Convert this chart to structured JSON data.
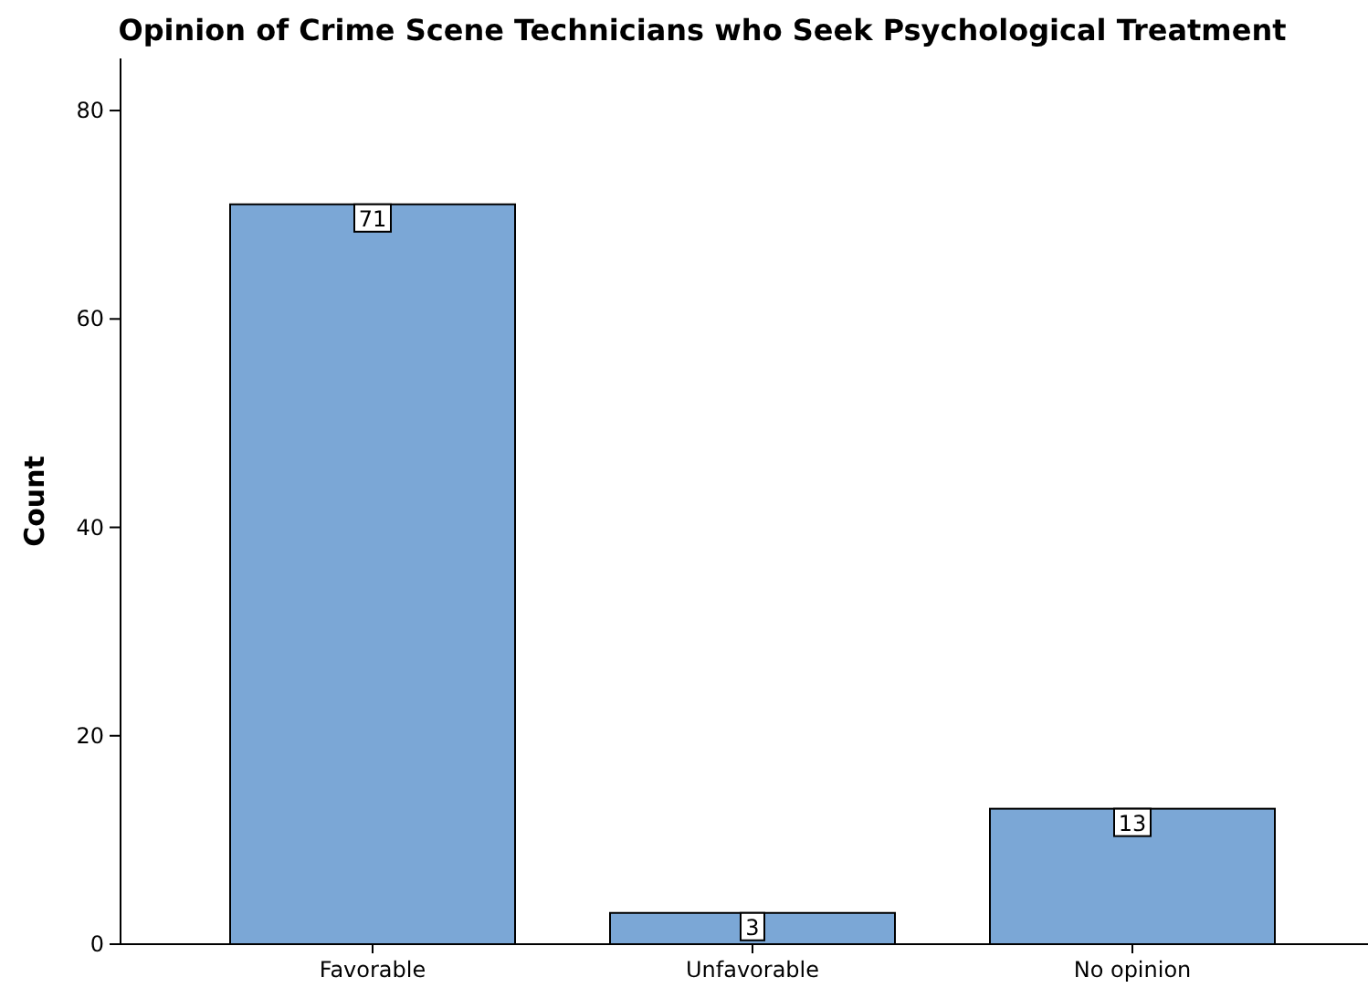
{
  "chart_data": {
    "type": "bar",
    "title": "Opinion of Crime Scene Technicians who Seek Psychological Treatment",
    "ylabel": "Count",
    "categories": [
      "Favorable",
      "Unfavorable",
      "No opinion"
    ],
    "values": [
      71,
      3,
      13
    ],
    "color": "#7ba7d6",
    "ylim": [
      0,
      85
    ],
    "yticks": [
      0,
      20,
      40,
      60,
      80
    ],
    "grid": false,
    "data_labels": true
  }
}
